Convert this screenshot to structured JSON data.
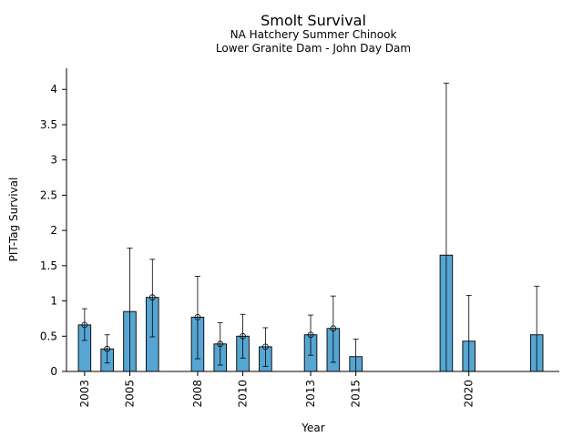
{
  "chart_data": {
    "type": "bar",
    "title": "Smolt Survival",
    "subtitle_lines": [
      "NA Hatchery Summer Chinook",
      "Lower Granite Dam - John Day Dam"
    ],
    "xlabel": "Year",
    "ylabel": "PIT-Tag Survival",
    "ylim": [
      0,
      4.3
    ],
    "xlim": [
      2002.2,
      2024.0
    ],
    "yticks": [
      0,
      0.5,
      1,
      1.5,
      2,
      2.5,
      3,
      3.5,
      4
    ],
    "ytick_labels": [
      "0",
      "0.5",
      "1",
      "1.5",
      "2",
      "2.5",
      "3",
      "3.5",
      "4"
    ],
    "xticks": [
      2003,
      2005,
      2008,
      2010,
      2013,
      2015,
      2020
    ],
    "xtick_labels": [
      "2003",
      "2005",
      "2008",
      "2010",
      "2013",
      "2015",
      "2020"
    ],
    "bar_color": "#56a5d2",
    "points": [
      {
        "year": 2003,
        "value": 0.66,
        "lower": 0.44,
        "upper": 0.89,
        "marker": true
      },
      {
        "year": 2004,
        "value": 0.32,
        "lower": 0.12,
        "upper": 0.52,
        "marker": true
      },
      {
        "year": 2005,
        "value": 0.85,
        "lower": 0.0,
        "upper": 1.75,
        "marker": false
      },
      {
        "year": 2006,
        "value": 1.05,
        "lower": 0.49,
        "upper": 1.59,
        "marker": true
      },
      {
        "year": 2008,
        "value": 0.77,
        "lower": 0.18,
        "upper": 1.35,
        "marker": true
      },
      {
        "year": 2009,
        "value": 0.39,
        "lower": 0.09,
        "upper": 0.69,
        "marker": true
      },
      {
        "year": 2010,
        "value": 0.5,
        "lower": 0.19,
        "upper": 0.81,
        "marker": true
      },
      {
        "year": 2011,
        "value": 0.35,
        "lower": 0.07,
        "upper": 0.62,
        "marker": true
      },
      {
        "year": 2013,
        "value": 0.52,
        "lower": 0.23,
        "upper": 0.8,
        "marker": true
      },
      {
        "year": 2014,
        "value": 0.61,
        "lower": 0.13,
        "upper": 1.07,
        "marker": true
      },
      {
        "year": 2015,
        "value": 0.21,
        "lower": 0.0,
        "upper": 0.46,
        "marker": false
      },
      {
        "year": 2019,
        "value": 1.65,
        "lower": 0.0,
        "upper": 4.09,
        "marker": false
      },
      {
        "year": 2020,
        "value": 0.43,
        "lower": 0.0,
        "upper": 1.08,
        "marker": false
      },
      {
        "year": 2023,
        "value": 0.52,
        "lower": 0.0,
        "upper": 1.21,
        "marker": false
      }
    ]
  }
}
